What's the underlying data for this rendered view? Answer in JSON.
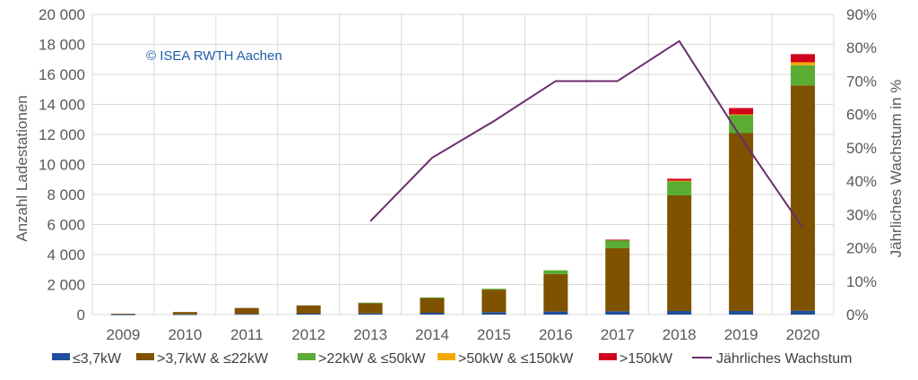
{
  "chart_data": {
    "type": "bar",
    "stacked": true,
    "categories": [
      "2009",
      "2010",
      "2011",
      "2012",
      "2013",
      "2014",
      "2015",
      "2016",
      "2017",
      "2018",
      "2019",
      "2020"
    ],
    "series": [
      {
        "name": "≤3,7kW",
        "color": "#1f4e9b",
        "values": [
          10,
          20,
          40,
          60,
          80,
          120,
          160,
          200,
          220,
          240,
          240,
          260
        ]
      },
      {
        "name": ">3,7kW & ≤22kW",
        "color": "#7f5200",
        "values": [
          50,
          150,
          400,
          550,
          700,
          1000,
          1500,
          2500,
          4200,
          7700,
          11850,
          15000
        ]
      },
      {
        "name": ">22kW & ≤50kW",
        "color": "#5aac32",
        "values": [
          0,
          0,
          0,
          0,
          10,
          20,
          60,
          250,
          550,
          950,
          1200,
          1350
        ]
      },
      {
        "name": ">50kW & ≤150kW",
        "color": "#f5a800",
        "values": [
          0,
          0,
          0,
          0,
          0,
          0,
          0,
          0,
          0,
          30,
          50,
          200
        ]
      },
      {
        "name": ">150kW",
        "color": "#d0021b",
        "values": [
          0,
          0,
          0,
          0,
          0,
          0,
          0,
          0,
          20,
          130,
          420,
          540
        ]
      }
    ],
    "line_series": {
      "name": "Jährliches Wachstum",
      "color": "#6b2c6b",
      "axis": "right",
      "values": [
        null,
        null,
        null,
        null,
        28,
        47,
        58,
        70,
        70,
        82,
        53,
        26
      ]
    },
    "ylabel": "Anzahl Ladestationen",
    "y2label": "Jährliches Wachstum in %",
    "ylim": [
      0,
      20000
    ],
    "y2lim": [
      0,
      90
    ],
    "yticks": [
      "0",
      "2 000",
      "4 000",
      "6 000",
      "8 000",
      "10 000",
      "12 000",
      "14 000",
      "16 000",
      "18 000",
      "20 000"
    ],
    "y2ticks": [
      "0%",
      "10%",
      "20%",
      "30%",
      "40%",
      "50%",
      "60%",
      "70%",
      "80%",
      "90%"
    ],
    "grid": true,
    "legend_position": "bottom",
    "annotation": "© ISEA RWTH Aachen",
    "annotation_color": "#1f5fa8"
  }
}
